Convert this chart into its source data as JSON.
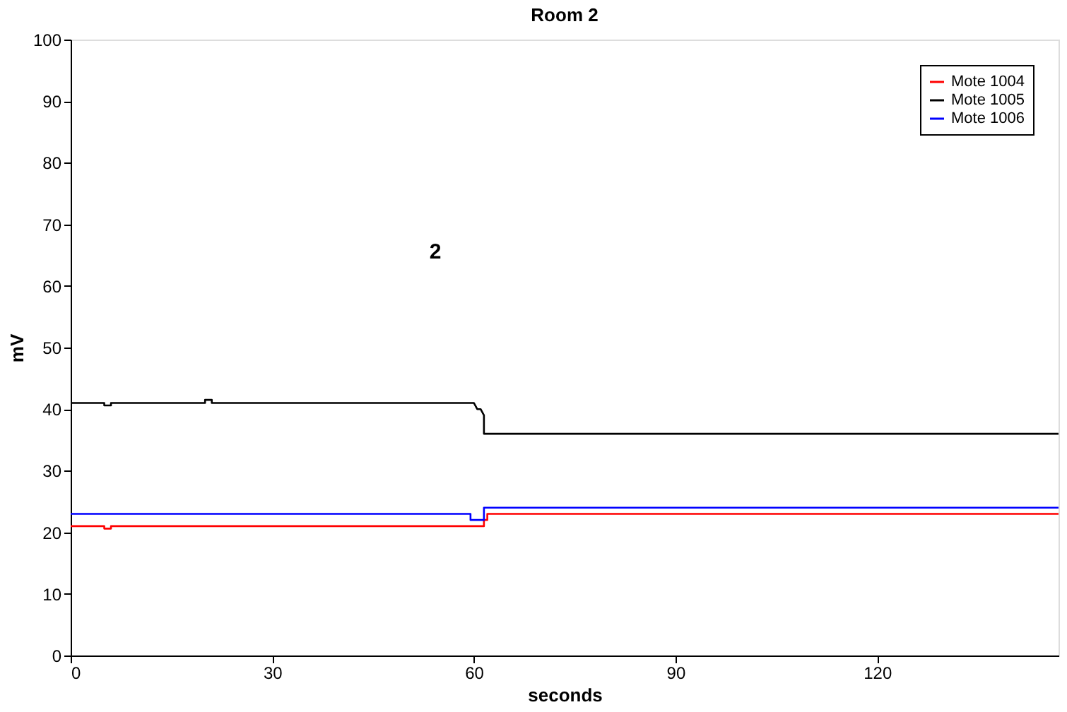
{
  "chart_data": {
    "type": "line",
    "title": "Room 2",
    "xlabel": "seconds",
    "ylabel": "mV",
    "xlim": [
      0,
      147
    ],
    "xticks": [
      0,
      30,
      60,
      90,
      120
    ],
    "ylim": [
      0,
      100
    ],
    "yticks": [
      0,
      10,
      20,
      30,
      40,
      50,
      60,
      70,
      80,
      90,
      100
    ],
    "grid": false,
    "legend": "top right",
    "marker": "none",
    "line_style": "solid",
    "annotations": [
      "2"
    ],
    "series": [
      {
        "name": "Mote 1004",
        "color": "#ff0000",
        "x": [
          0,
          5,
          5,
          6,
          6,
          60.5,
          60.5,
          61.5,
          61.5,
          62,
          62,
          147
        ],
        "values": [
          21,
          21,
          20.6,
          20.6,
          21,
          21,
          21,
          21,
          22,
          22,
          23,
          23
        ]
      },
      {
        "name": "Mote 1005",
        "color": "#000000",
        "x": [
          0,
          5,
          5,
          6,
          6,
          20,
          20,
          21,
          21,
          60,
          60.5,
          61,
          61.5,
          61.5,
          147
        ],
        "values": [
          41,
          41,
          40.6,
          40.6,
          41,
          41,
          41.5,
          41.5,
          41,
          41,
          40,
          40,
          39,
          36,
          36
        ]
      },
      {
        "name": "Mote 1006",
        "color": "#0000ff",
        "x": [
          0,
          59.5,
          59.5,
          61.5,
          61.5,
          147
        ],
        "values": [
          23,
          23,
          22,
          22,
          24,
          24
        ]
      }
    ]
  }
}
